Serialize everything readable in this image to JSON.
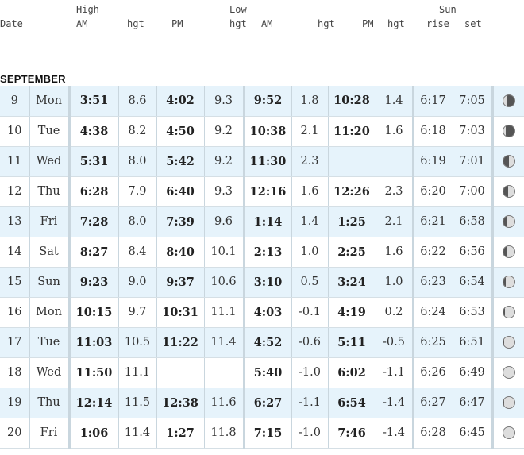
{
  "header": {
    "date": "Date",
    "high": "High",
    "high_am": "AM",
    "high_hgt1": "hgt",
    "high_pm": "PM",
    "high_hgt2": "hgt",
    "low": "Low",
    "low_am": "AM",
    "low_hgt1": "hgt",
    "low_pm": "PM",
    "low_hgt2": "hgt",
    "sun": "Sun",
    "rise": "rise",
    "set": "set"
  },
  "month": "SEPTEMBER",
  "rows": [
    {
      "day": "9",
      "dow": "Mon",
      "h_am": "3:51",
      "h_am_hgt": "8.6",
      "h_pm": "4:02",
      "h_pm_hgt": "9.3",
      "l_am": "9:52",
      "l_am_hgt": "1.8",
      "l_pm": "10:28",
      "l_pm_hgt": "1.4",
      "rise": "6:17",
      "set": "7:05",
      "moon": "waning-crescent-icon",
      "lit": 0.35
    },
    {
      "day": "10",
      "dow": "Tue",
      "h_am": "4:38",
      "h_am_hgt": "8.2",
      "h_pm": "4:50",
      "h_pm_hgt": "9.2",
      "l_am": "10:38",
      "l_am_hgt": "2.1",
      "l_pm": "11:20",
      "l_pm_hgt": "1.6",
      "rise": "6:18",
      "set": "7:03",
      "moon": "waning-crescent-icon",
      "lit": 0.25
    },
    {
      "day": "11",
      "dow": "Wed",
      "h_am": "5:31",
      "h_am_hgt": "8.0",
      "h_pm": "5:42",
      "h_pm_hgt": "9.2",
      "l_am": "11:30",
      "l_am_hgt": "2.3",
      "l_pm": "",
      "l_pm_hgt": "",
      "rise": "6:19",
      "set": "7:01",
      "moon": "first-quarter-icon",
      "lit": 0.5
    },
    {
      "day": "12",
      "dow": "Thu",
      "h_am": "6:28",
      "h_am_hgt": "7.9",
      "h_pm": "6:40",
      "h_pm_hgt": "9.3",
      "l_am": "12:16",
      "l_am_hgt": "1.6",
      "l_pm": "12:26",
      "l_pm_hgt": "2.3",
      "rise": "6:20",
      "set": "7:00",
      "moon": "first-quarter-icon",
      "lit": 0.55
    },
    {
      "day": "13",
      "dow": "Fri",
      "h_am": "7:28",
      "h_am_hgt": "8.0",
      "h_pm": "7:39",
      "h_pm_hgt": "9.6",
      "l_am": "1:14",
      "l_am_hgt": "1.4",
      "l_pm": "1:25",
      "l_pm_hgt": "2.1",
      "rise": "6:21",
      "set": "6:58",
      "moon": "waxing-gibbous-icon",
      "lit": 0.6
    },
    {
      "day": "14",
      "dow": "Sat",
      "h_am": "8:27",
      "h_am_hgt": "8.4",
      "h_pm": "8:40",
      "h_pm_hgt": "10.1",
      "l_am": "2:13",
      "l_am_hgt": "1.0",
      "l_pm": "2:25",
      "l_pm_hgt": "1.6",
      "rise": "6:22",
      "set": "6:56",
      "moon": "waxing-gibbous-icon",
      "lit": 0.7
    },
    {
      "day": "15",
      "dow": "Sun",
      "h_am": "9:23",
      "h_am_hgt": "9.0",
      "h_pm": "9:37",
      "h_pm_hgt": "10.6",
      "l_am": "3:10",
      "l_am_hgt": "0.5",
      "l_pm": "3:24",
      "l_pm_hgt": "1.0",
      "rise": "6:23",
      "set": "6:54",
      "moon": "waxing-gibbous-icon",
      "lit": 0.78
    },
    {
      "day": "16",
      "dow": "Mon",
      "h_am": "10:15",
      "h_am_hgt": "9.7",
      "h_pm": "10:31",
      "h_pm_hgt": "11.1",
      "l_am": "4:03",
      "l_am_hgt": "-0.1",
      "l_pm": "4:19",
      "l_pm_hgt": "0.2",
      "rise": "6:24",
      "set": "6:53",
      "moon": "waxing-gibbous-icon",
      "lit": 0.85
    },
    {
      "day": "17",
      "dow": "Tue",
      "h_am": "11:03",
      "h_am_hgt": "10.5",
      "h_pm": "11:22",
      "h_pm_hgt": "11.4",
      "l_am": "4:52",
      "l_am_hgt": "-0.6",
      "l_pm": "5:11",
      "l_pm_hgt": "-0.5",
      "rise": "6:25",
      "set": "6:51",
      "moon": "full-moon-icon",
      "lit": 0.95
    },
    {
      "day": "18",
      "dow": "Wed",
      "h_am": "11:50",
      "h_am_hgt": "11.1",
      "h_pm": "",
      "h_pm_hgt": "",
      "l_am": "5:40",
      "l_am_hgt": "-1.0",
      "l_pm": "6:02",
      "l_pm_hgt": "-1.1",
      "rise": "6:26",
      "set": "6:49",
      "moon": "full-moon-icon",
      "lit": 1.0
    },
    {
      "day": "19",
      "dow": "Thu",
      "h_am": "12:14",
      "h_am_hgt": "11.5",
      "h_pm": "12:38",
      "h_pm_hgt": "11.6",
      "l_am": "6:27",
      "l_am_hgt": "-1.1",
      "l_pm": "6:54",
      "l_pm_hgt": "-1.4",
      "rise": "6:27",
      "set": "6:47",
      "moon": "full-moon-icon",
      "lit": 0.97
    },
    {
      "day": "20",
      "dow": "Fri",
      "h_am": "1:06",
      "h_am_hgt": "11.4",
      "h_pm": "1:27",
      "h_pm_hgt": "11.8",
      "l_am": "7:15",
      "l_am_hgt": "-1.0",
      "l_pm": "7:46",
      "l_pm_hgt": "-1.4",
      "rise": "6:28",
      "set": "6:45",
      "moon": "waning-gibbous-icon",
      "lit": 0.92
    }
  ],
  "colors": {
    "stripe": "#e6f3fb",
    "border": "#c9d6de"
  }
}
